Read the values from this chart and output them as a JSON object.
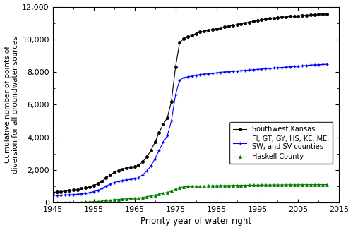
{
  "title": "",
  "xlabel": "Priority year of water right",
  "ylabel": "Cumulative number of points of\ndiversion for all groundwater sources",
  "xlim": [
    1945,
    2015
  ],
  "ylim": [
    0,
    12000
  ],
  "yticks": [
    0,
    2000,
    4000,
    6000,
    8000,
    10000,
    12000
  ],
  "xticks": [
    1945,
    1955,
    1965,
    1975,
    1985,
    1995,
    2005,
    2015
  ],
  "sw_kansas": {
    "x": [
      1945,
      1946,
      1947,
      1948,
      1949,
      1950,
      1951,
      1952,
      1953,
      1954,
      1955,
      1956,
      1957,
      1958,
      1959,
      1960,
      1961,
      1962,
      1963,
      1964,
      1965,
      1966,
      1967,
      1968,
      1969,
      1970,
      1971,
      1972,
      1973,
      1974,
      1975,
      1976,
      1977,
      1978,
      1979,
      1980,
      1981,
      1982,
      1983,
      1984,
      1985,
      1986,
      1987,
      1988,
      1989,
      1990,
      1991,
      1992,
      1993,
      1994,
      1995,
      1996,
      1997,
      1998,
      1999,
      2000,
      2001,
      2002,
      2003,
      2004,
      2005,
      2006,
      2007,
      2008,
      2009,
      2010,
      2011,
      2012
    ],
    "y": [
      620,
      650,
      670,
      700,
      730,
      760,
      800,
      850,
      900,
      960,
      1050,
      1150,
      1300,
      1500,
      1700,
      1850,
      1950,
      2050,
      2100,
      2150,
      2200,
      2300,
      2500,
      2800,
      3200,
      3700,
      4300,
      4800,
      5200,
      6200,
      8300,
      9800,
      10050,
      10150,
      10250,
      10350,
      10450,
      10500,
      10550,
      10600,
      10650,
      10700,
      10750,
      10800,
      10850,
      10900,
      10950,
      11000,
      11050,
      11100,
      11150,
      11200,
      11250,
      11280,
      11310,
      11340,
      11360,
      11380,
      11400,
      11420,
      11440,
      11460,
      11480,
      11500,
      11520,
      11530,
      11540,
      11550
    ],
    "color": "#000000",
    "marker": "o",
    "markersize": 2.5,
    "label": "Southwest Kansas"
  },
  "fi_counties": {
    "x": [
      1945,
      1946,
      1947,
      1948,
      1949,
      1950,
      1951,
      1952,
      1953,
      1954,
      1955,
      1956,
      1957,
      1958,
      1959,
      1960,
      1961,
      1962,
      1963,
      1964,
      1965,
      1966,
      1967,
      1968,
      1969,
      1970,
      1971,
      1972,
      1973,
      1974,
      1975,
      1976,
      1977,
      1978,
      1979,
      1980,
      1981,
      1982,
      1983,
      1984,
      1985,
      1986,
      1987,
      1988,
      1989,
      1990,
      1991,
      1992,
      1993,
      1994,
      1995,
      1996,
      1997,
      1998,
      1999,
      2000,
      2001,
      2002,
      2003,
      2004,
      2005,
      2006,
      2007,
      2008,
      2009,
      2010,
      2011,
      2012
    ],
    "y": [
      430,
      445,
      455,
      465,
      475,
      490,
      510,
      535,
      565,
      610,
      670,
      740,
      860,
      1000,
      1130,
      1230,
      1290,
      1360,
      1390,
      1420,
      1450,
      1530,
      1700,
      1950,
      2250,
      2700,
      3200,
      3700,
      4100,
      5000,
      6600,
      7500,
      7650,
      7700,
      7750,
      7800,
      7850,
      7870,
      7890,
      7910,
      7950,
      7980,
      8010,
      8020,
      8040,
      8060,
      8080,
      8100,
      8120,
      8140,
      8160,
      8180,
      8200,
      8220,
      8240,
      8260,
      8280,
      8300,
      8320,
      8340,
      8360,
      8380,
      8400,
      8420,
      8440,
      8450,
      8460,
      8470
    ],
    "color": "#0000ff",
    "marker": "+",
    "markersize": 3.5,
    "label": "FI, GT, GY, HS, KE, ME,\nSW, and SV counties"
  },
  "haskell": {
    "x": [
      1945,
      1946,
      1947,
      1948,
      1949,
      1950,
      1951,
      1952,
      1953,
      1954,
      1955,
      1956,
      1957,
      1958,
      1959,
      1960,
      1961,
      1962,
      1963,
      1964,
      1965,
      1966,
      1967,
      1968,
      1969,
      1970,
      1971,
      1972,
      1973,
      1974,
      1975,
      1976,
      1977,
      1978,
      1979,
      1980,
      1981,
      1982,
      1983,
      1984,
      1985,
      1986,
      1987,
      1988,
      1989,
      1990,
      1991,
      1992,
      1993,
      1994,
      1995,
      1996,
      1997,
      1998,
      1999,
      2000,
      2001,
      2002,
      2003,
      2004,
      2005,
      2006,
      2007,
      2008,
      2009,
      2010,
      2011,
      2012
    ],
    "y": [
      5,
      6,
      8,
      10,
      12,
      15,
      18,
      22,
      28,
      38,
      50,
      65,
      90,
      115,
      145,
      170,
      190,
      210,
      225,
      240,
      255,
      275,
      310,
      360,
      400,
      450,
      510,
      570,
      620,
      700,
      830,
      920,
      960,
      980,
      990,
      1000,
      1010,
      1015,
      1020,
      1025,
      1030,
      1035,
      1040,
      1045,
      1048,
      1052,
      1056,
      1060,
      1063,
      1066,
      1069,
      1072,
      1075,
      1077,
      1079,
      1081,
      1083,
      1085,
      1087,
      1089,
      1091,
      1093,
      1095,
      1097,
      1098,
      1099,
      1100,
      1101
    ],
    "color": "#008000",
    "marker": "^",
    "markersize": 2.5,
    "label": "Haskell County"
  }
}
